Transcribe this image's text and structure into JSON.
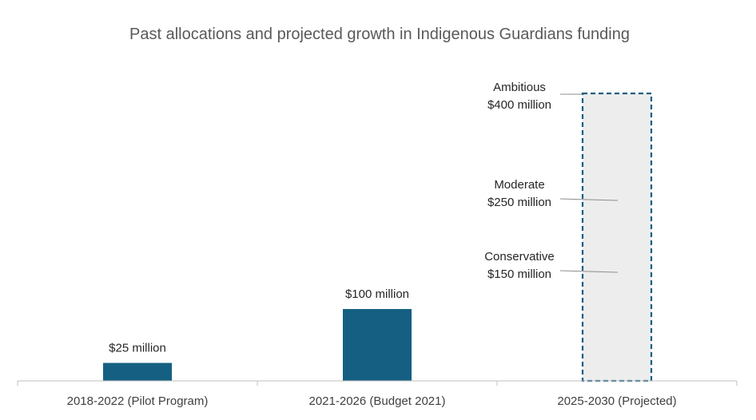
{
  "chart_data": {
    "type": "bar",
    "title": "Past allocations and projected growth in Indigenous Guardians funding",
    "xlabel": "",
    "ylabel": "",
    "ylim": [
      0,
      405
    ],
    "grid": false,
    "legend": "none",
    "categories": [
      "2018-2022 (Pilot Program)",
      "2021-2026 (Budget 2021)",
      "2025-2030 (Projected)"
    ],
    "bars": [
      {
        "category": "2018-2022 (Pilot Program)",
        "value": 25,
        "label": "$25 million",
        "style": "solid"
      },
      {
        "category": "2021-2026 (Budget 2021)",
        "value": 100,
        "label": "$100 million",
        "style": "solid"
      },
      {
        "category": "2025-2030 (Projected)",
        "value": 400,
        "label": "",
        "style": "dashed-outline"
      }
    ],
    "annotations": [
      {
        "category": "2025-2030 (Projected)",
        "value": 400,
        "line1": "Ambitious",
        "line2": "$400 million"
      },
      {
        "category": "2025-2030 (Projected)",
        "value": 250,
        "line1": "Moderate",
        "line2": "$250 million"
      },
      {
        "category": "2025-2030 (Projected)",
        "value": 150,
        "line1": "Conservative",
        "line2": "$150 million"
      }
    ],
    "colors": {
      "bar": "#156082",
      "projected_fill": "#ededed",
      "projected_outline": "#156082",
      "axis": "#bfbfbf",
      "leader": "#8c8c8c"
    }
  }
}
